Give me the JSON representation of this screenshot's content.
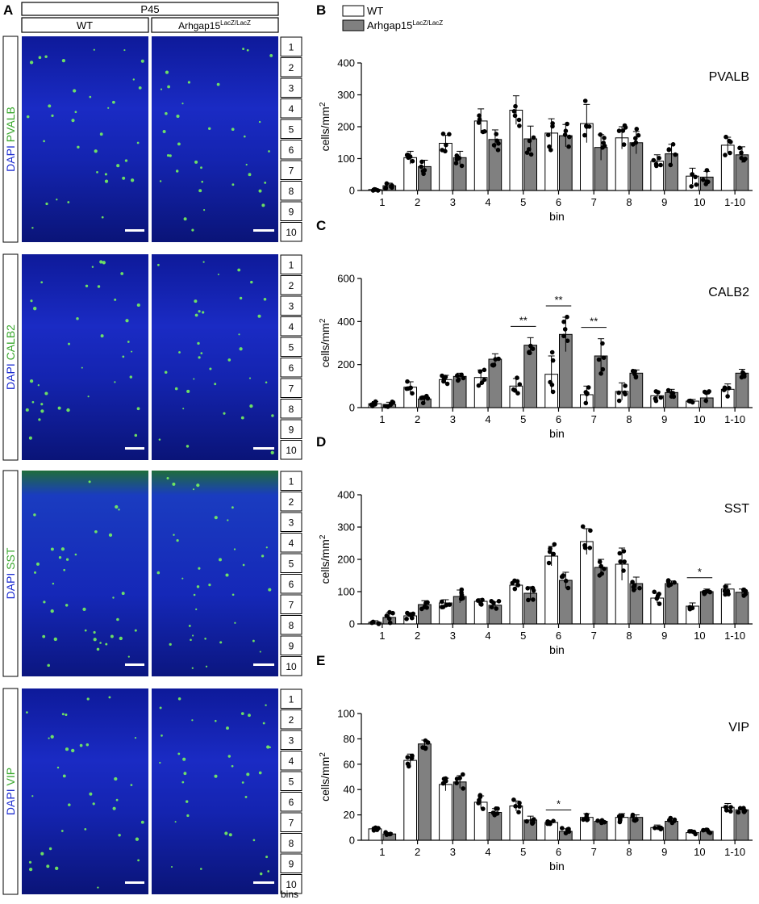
{
  "figure": {
    "panel_a": {
      "letter": "A",
      "age_label": "P45",
      "col_wt": "WT",
      "col_mut_base": "Arhgap15",
      "col_mut_sup": "LacZ/LacZ",
      "bins_label": "bins",
      "bin_numbers": [
        "1",
        "2",
        "3",
        "4",
        "5",
        "6",
        "7",
        "8",
        "9",
        "10"
      ],
      "rows": [
        {
          "dapi": "DAPI",
          "marker": "PVALB"
        },
        {
          "dapi": "DAPI",
          "marker": "CALB2"
        },
        {
          "dapi": "DAPI",
          "marker": "SST"
        },
        {
          "dapi": "DAPI",
          "marker": "VIP"
        }
      ]
    },
    "legend": {
      "wt_label": "WT",
      "mut_base": "Arhgap15",
      "mut_sup": "LacZ/LacZ"
    },
    "colors": {
      "wt_fill": "#ffffff",
      "mut_fill": "#808080",
      "dapi_blue": "#1b2bd0",
      "marker_green": "#3aa82e",
      "cell_green": "#7dff5a"
    }
  },
  "chart_data": [
    {
      "type": "bar",
      "panel": "B",
      "title": "PVALB",
      "xlabel": "bin",
      "ylabel_base": "cells/mm",
      "ylabel_sup": "2",
      "categories": [
        "1",
        "2",
        "3",
        "4",
        "5",
        "6",
        "7",
        "8",
        "9",
        "10",
        "1-10"
      ],
      "ylim": [
        0,
        400
      ],
      "yticks": [
        0,
        100,
        200,
        300,
        400
      ],
      "series": [
        {
          "name": "WT",
          "values": [
            3,
            103,
            148,
            218,
            252,
            180,
            210,
            165,
            92,
            45,
            142
          ],
          "sem": [
            3,
            20,
            25,
            38,
            45,
            45,
            60,
            35,
            20,
            25,
            25
          ]
        },
        {
          "name": "Arhgap15LacZ/LacZ",
          "values": [
            15,
            75,
            103,
            160,
            162,
            172,
            135,
            150,
            115,
            42,
            112
          ],
          "sem": [
            8,
            20,
            20,
            30,
            40,
            35,
            40,
            35,
            30,
            18,
            25
          ]
        }
      ],
      "significance": []
    },
    {
      "type": "bar",
      "panel": "C",
      "title": "CALB2",
      "xlabel": "bin",
      "ylabel_base": "cells/mm",
      "ylabel_sup": "2",
      "categories": [
        "1",
        "2",
        "3",
        "4",
        "5",
        "6",
        "7",
        "8",
        "9",
        "10",
        "1-10"
      ],
      "ylim": [
        0,
        600
      ],
      "yticks": [
        0,
        200,
        400,
        600
      ],
      "series": [
        {
          "name": "WT",
          "values": [
            18,
            95,
            130,
            140,
            100,
            155,
            60,
            75,
            55,
            30,
            85
          ],
          "sem": [
            10,
            25,
            20,
            35,
            35,
            85,
            40,
            40,
            20,
            8,
            25
          ]
        },
        {
          "name": "Arhgap15LacZ/LacZ",
          "values": [
            15,
            40,
            145,
            225,
            290,
            340,
            240,
            160,
            70,
            45,
            160
          ],
          "sem": [
            10,
            15,
            15,
            25,
            35,
            80,
            80,
            15,
            15,
            25,
            18
          ]
        }
      ],
      "significance": [
        {
          "category": "5",
          "label": "**"
        },
        {
          "category": "6",
          "label": "**"
        },
        {
          "category": "7",
          "label": "**"
        }
      ]
    },
    {
      "type": "bar",
      "panel": "D",
      "title": "SST",
      "xlabel": "bin",
      "ylabel_base": "cells/mm",
      "ylabel_sup": "2",
      "categories": [
        "1",
        "2",
        "3",
        "4",
        "5",
        "6",
        "7",
        "8",
        "9",
        "10",
        "1-10"
      ],
      "ylim": [
        0,
        400
      ],
      "yticks": [
        0,
        100,
        200,
        300,
        400
      ],
      "series": [
        {
          "name": "WT",
          "values": [
            5,
            25,
            65,
            70,
            120,
            210,
            255,
            185,
            80,
            55,
            108
          ],
          "sem": [
            5,
            10,
            10,
            8,
            12,
            30,
            40,
            50,
            15,
            10,
            15
          ]
        },
        {
          "name": "Arhgap15LacZ/LacZ",
          "values": [
            20,
            60,
            85,
            58,
            95,
            135,
            175,
            125,
            125,
            100,
            98
          ],
          "sem": [
            15,
            12,
            20,
            10,
            20,
            25,
            25,
            20,
            8,
            8,
            10
          ]
        }
      ],
      "significance": [
        {
          "category": "10",
          "label": "*"
        }
      ]
    },
    {
      "type": "bar",
      "panel": "E",
      "title": "VIP",
      "xlabel": "bin",
      "ylabel_base": "cells/mm",
      "ylabel_sup": "2",
      "categories": [
        "1",
        "2",
        "3",
        "4",
        "5",
        "6",
        "7",
        "8",
        "9",
        "10",
        "1-10"
      ],
      "ylim": [
        0,
        100
      ],
      "yticks": [
        0,
        20,
        40,
        60,
        80,
        100
      ],
      "series": [
        {
          "name": "WT",
          "values": [
            9,
            63,
            44,
            30,
            27,
            14,
            18,
            18,
            10,
            6,
            26
          ],
          "sem": [
            1,
            5,
            5,
            5,
            4,
            1,
            3,
            3,
            2,
            1,
            3
          ]
        },
        {
          "name": "Arhgap15LacZ/LacZ",
          "values": [
            5,
            76,
            46,
            22,
            16,
            7,
            15,
            18,
            15,
            7,
            24
          ],
          "sem": [
            1,
            3,
            5,
            3,
            3,
            2,
            1,
            2,
            2,
            1,
            2
          ]
        }
      ],
      "significance": [
        {
          "category": "6",
          "label": "*"
        }
      ]
    }
  ]
}
